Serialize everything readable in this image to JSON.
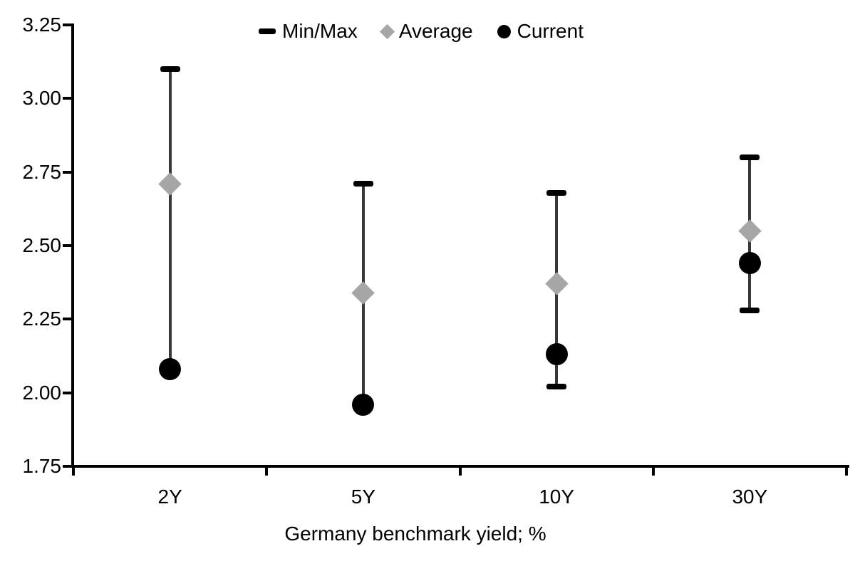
{
  "chart_data": {
    "type": "range_dot",
    "title": "",
    "xlabel": "Germany benchmark yield; %",
    "ylabel": "",
    "categories": [
      "2Y",
      "5Y",
      "10Y",
      "30Y"
    ],
    "series": [
      {
        "name": "Min/Max",
        "role": "range",
        "marker": "dash",
        "color": "#000000",
        "min": [
          2.08,
          1.96,
          2.02,
          2.28
        ],
        "max": [
          3.1,
          2.71,
          2.68,
          2.8
        ]
      },
      {
        "name": "Average",
        "role": "point",
        "marker": "diamond",
        "color": "#a6a6a6",
        "values": [
          2.71,
          2.34,
          2.37,
          2.55
        ]
      },
      {
        "name": "Current",
        "role": "point",
        "marker": "circle",
        "color": "#000000",
        "values": [
          2.08,
          1.96,
          2.13,
          2.44
        ]
      }
    ],
    "ylim": [
      1.75,
      3.25
    ],
    "ytick_step": 0.25,
    "ytick_labels": [
      "3.25",
      "3.00",
      "2.75",
      "2.50",
      "2.25",
      "2.00",
      "1.75"
    ],
    "grid": false,
    "legend_position": "top-center"
  },
  "colors": {
    "background": "#ffffff",
    "axis": "#000000",
    "range_line": "#383838",
    "average_marker": "#a6a6a6",
    "current_marker": "#000000",
    "text": "#000000"
  }
}
